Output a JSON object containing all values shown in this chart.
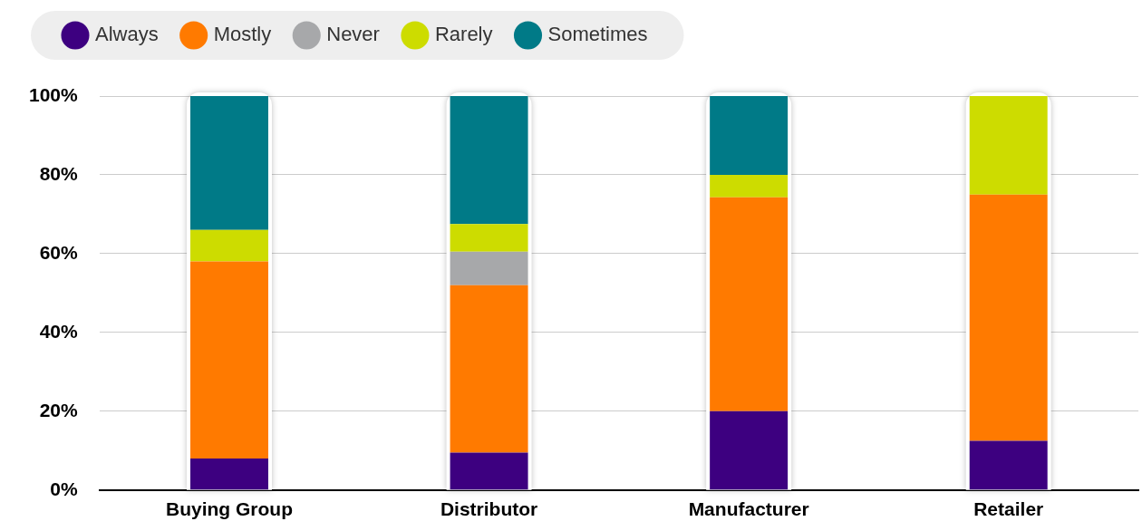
{
  "chart_data": {
    "type": "bar",
    "stacked": true,
    "categories": [
      "Buying Group",
      "Distributor",
      "Manufacturer",
      "Retailer"
    ],
    "series": [
      {
        "name": "Always",
        "color": "#3d0080",
        "values": [
          8,
          9.5,
          20,
          12.5
        ]
      },
      {
        "name": "Mostly",
        "color": "#ff7a00",
        "values": [
          50,
          42.5,
          54.3,
          62.5
        ]
      },
      {
        "name": "Never",
        "color": "#a7a8aa",
        "values": [
          0,
          8.5,
          0,
          0
        ]
      },
      {
        "name": "Rarely",
        "color": "#cddc00",
        "values": [
          8,
          7,
          5.7,
          25
        ]
      },
      {
        "name": "Sometimes",
        "color": "#007a87",
        "values": [
          34,
          32.5,
          20,
          0
        ]
      }
    ],
    "ylim": [
      0,
      100
    ],
    "yticks": [
      {
        "value": 0,
        "label": "0%"
      },
      {
        "value": 20,
        "label": "20%"
      },
      {
        "value": 40,
        "label": "40%"
      },
      {
        "value": 60,
        "label": "60%"
      },
      {
        "value": 80,
        "label": "80%"
      },
      {
        "value": 100,
        "label": "100%"
      }
    ],
    "grid": "y",
    "legend": "top left"
  }
}
